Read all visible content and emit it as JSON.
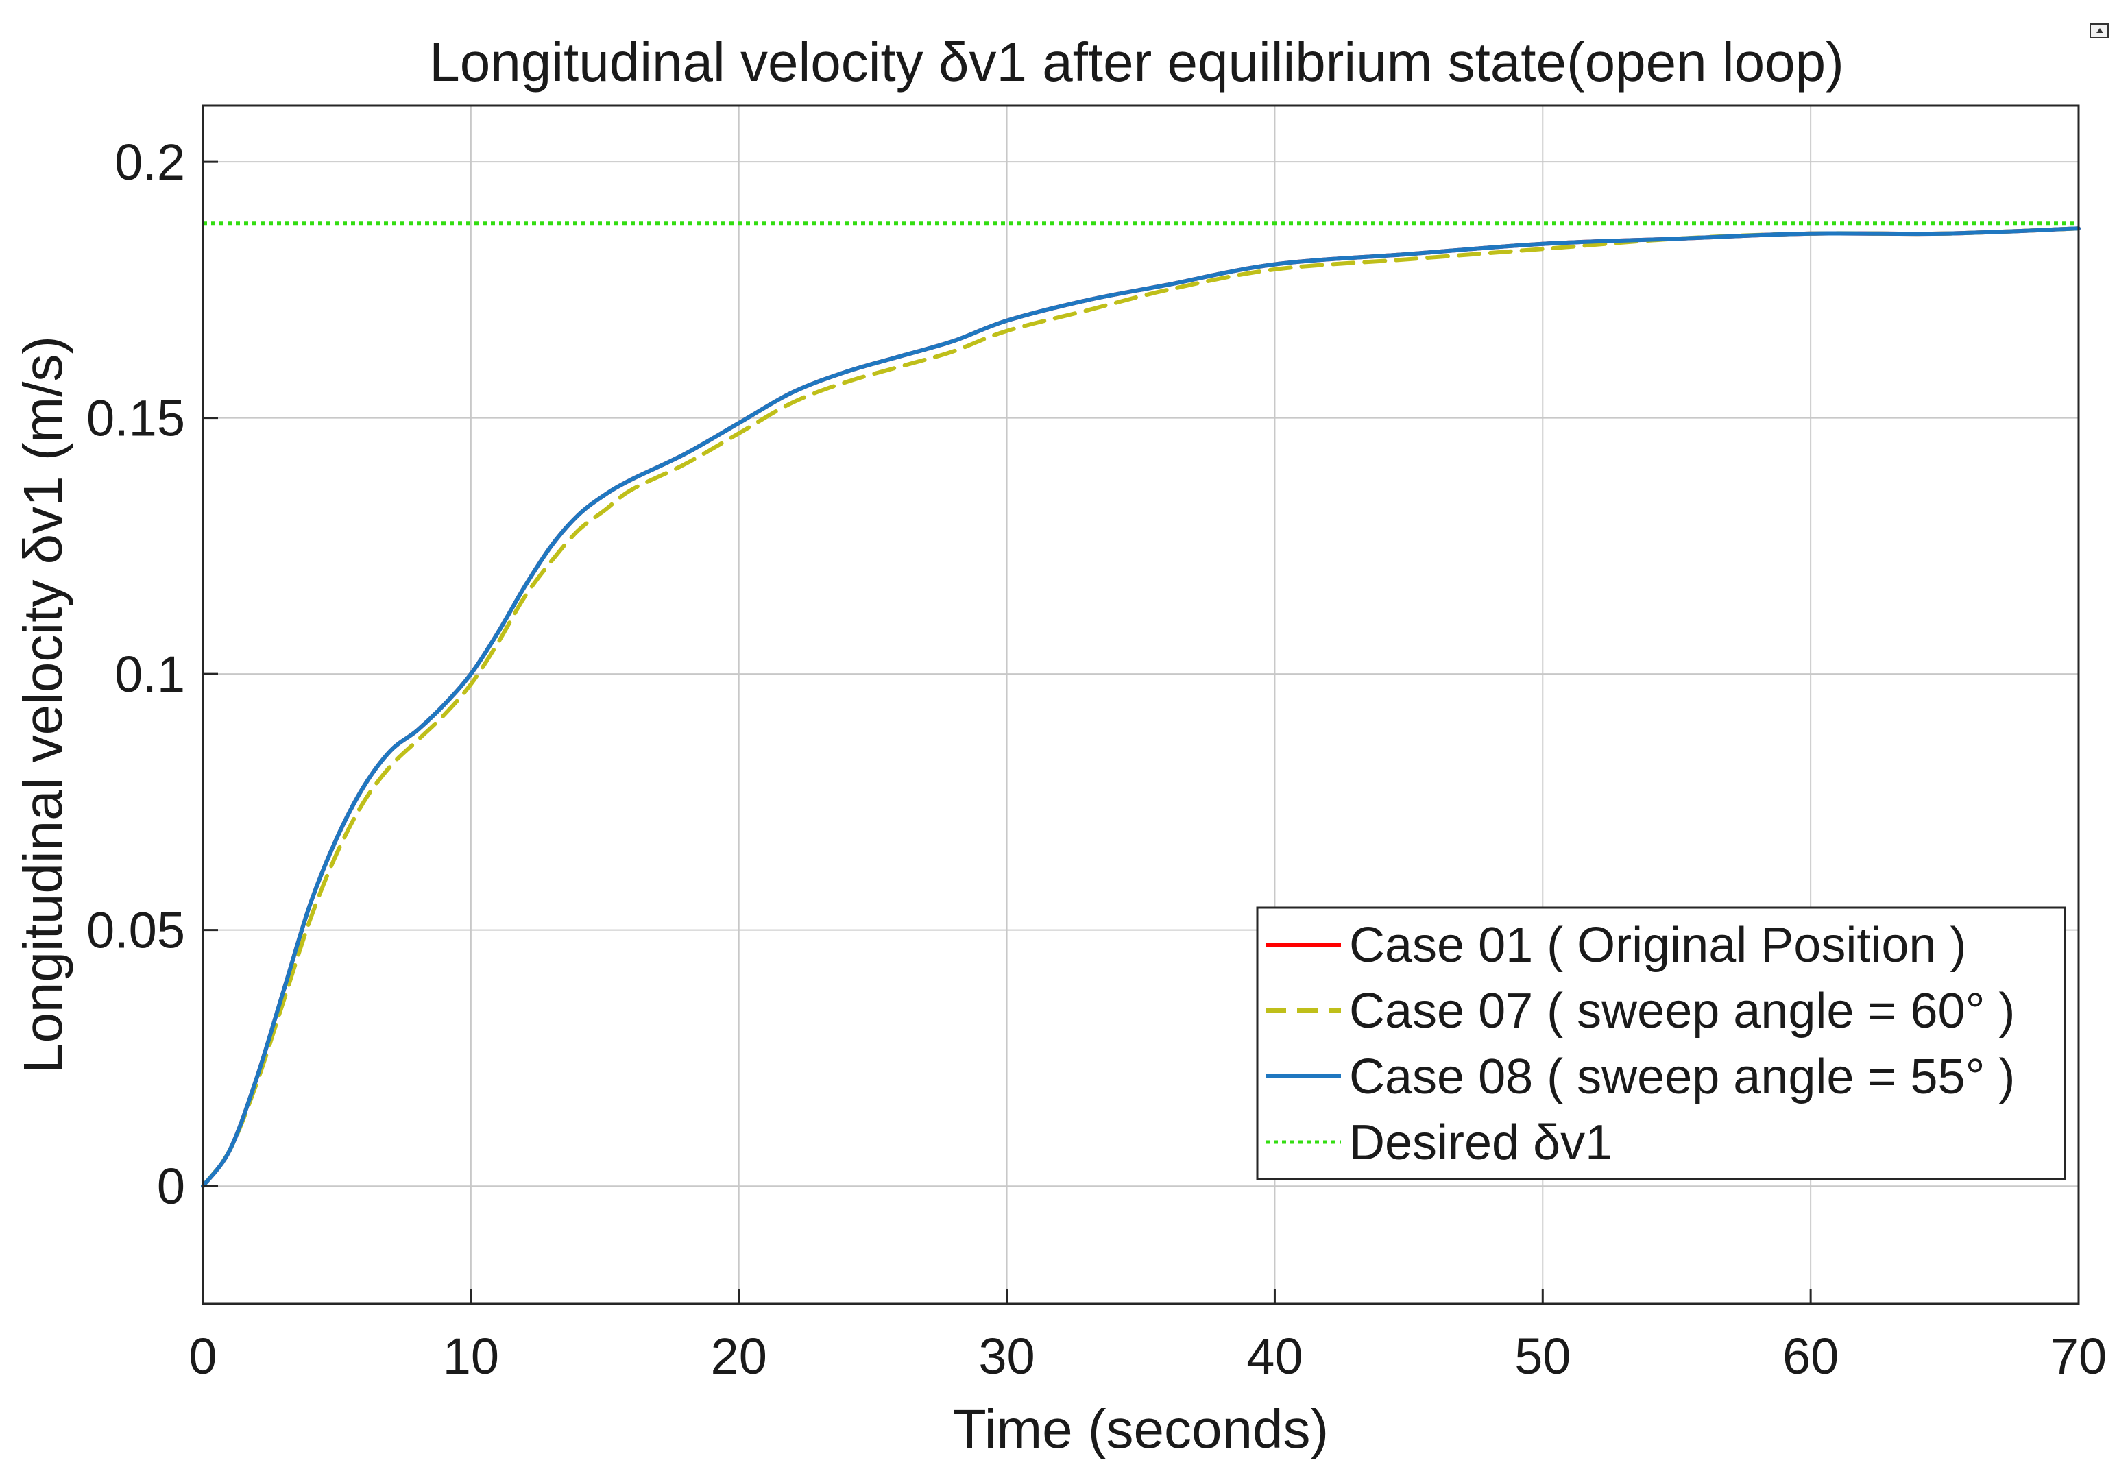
{
  "chart_data": {
    "type": "line",
    "title": "Longitudinal velocity δv1 after equilibrium state(open loop)",
    "xlabel": "Time (seconds)",
    "ylabel": "Longitudinal velocity δv1 (m/s)",
    "xlim": [
      0,
      70
    ],
    "ylim": [
      -0.023,
      0.211
    ],
    "xticks": [
      0,
      10,
      20,
      30,
      40,
      50,
      60,
      70
    ],
    "xtick_labels": [
      "0",
      "10",
      "20",
      "30",
      "40",
      "50",
      "60",
      "70"
    ],
    "yticks": [
      0,
      0.05,
      0.1,
      0.15,
      0.2
    ],
    "ytick_labels": [
      "0",
      "0.05",
      "0.1",
      "0.15",
      "0.2"
    ],
    "grid": true,
    "legend_position": "bottom-right",
    "series": [
      {
        "name": "Case 01 ( Original Position )",
        "style": "solid",
        "color": "#ff0000",
        "x": [
          0,
          1,
          2,
          3,
          4,
          5,
          6,
          7,
          8,
          9,
          10,
          11,
          12,
          13,
          14,
          15,
          16,
          18,
          20,
          22,
          24,
          26,
          28,
          30,
          33,
          36,
          40,
          45,
          50,
          55,
          60,
          65,
          70
        ],
        "values": [
          0,
          0.007,
          0.021,
          0.038,
          0.055,
          0.068,
          0.078,
          0.085,
          0.089,
          0.094,
          0.1,
          0.108,
          0.117,
          0.125,
          0.131,
          0.135,
          0.138,
          0.143,
          0.149,
          0.155,
          0.159,
          0.162,
          0.165,
          0.169,
          0.173,
          0.176,
          0.18,
          0.182,
          0.184,
          0.185,
          0.186,
          0.186,
          0.187
        ]
      },
      {
        "name": "Case 07 ( sweep angle = 60° )",
        "style": "dashed",
        "color": "#bfbf1a",
        "x": [
          0,
          1,
          2,
          3,
          4,
          5,
          6,
          7,
          8,
          9,
          10,
          11,
          12,
          13,
          14,
          15,
          16,
          18,
          20,
          22,
          24,
          26,
          28,
          30,
          33,
          36,
          40,
          45,
          50,
          55,
          60,
          65,
          70
        ],
        "values": [
          0,
          0.007,
          0.02,
          0.036,
          0.052,
          0.065,
          0.075,
          0.082,
          0.087,
          0.092,
          0.098,
          0.106,
          0.115,
          0.122,
          0.128,
          0.132,
          0.136,
          0.141,
          0.147,
          0.153,
          0.157,
          0.16,
          0.163,
          0.167,
          0.171,
          0.175,
          0.179,
          0.181,
          0.183,
          0.185,
          0.186,
          0.186,
          0.187
        ]
      },
      {
        "name": "Case 08 ( sweep angle = 55° )",
        "style": "solid",
        "color": "#1f77c0",
        "x": [
          0,
          1,
          2,
          3,
          4,
          5,
          6,
          7,
          8,
          9,
          10,
          11,
          12,
          13,
          14,
          15,
          16,
          18,
          20,
          22,
          24,
          26,
          28,
          30,
          33,
          36,
          40,
          45,
          50,
          55,
          60,
          65,
          70
        ],
        "values": [
          0,
          0.007,
          0.021,
          0.038,
          0.055,
          0.068,
          0.078,
          0.085,
          0.089,
          0.094,
          0.1,
          0.108,
          0.117,
          0.125,
          0.131,
          0.135,
          0.138,
          0.143,
          0.149,
          0.155,
          0.159,
          0.162,
          0.165,
          0.169,
          0.173,
          0.176,
          0.18,
          0.182,
          0.184,
          0.185,
          0.186,
          0.186,
          0.187
        ]
      },
      {
        "name": "Desired δv1",
        "style": "dotted",
        "color": "#33dd11",
        "x": [
          0,
          70
        ],
        "values": [
          0.188,
          0.188
        ]
      }
    ]
  }
}
